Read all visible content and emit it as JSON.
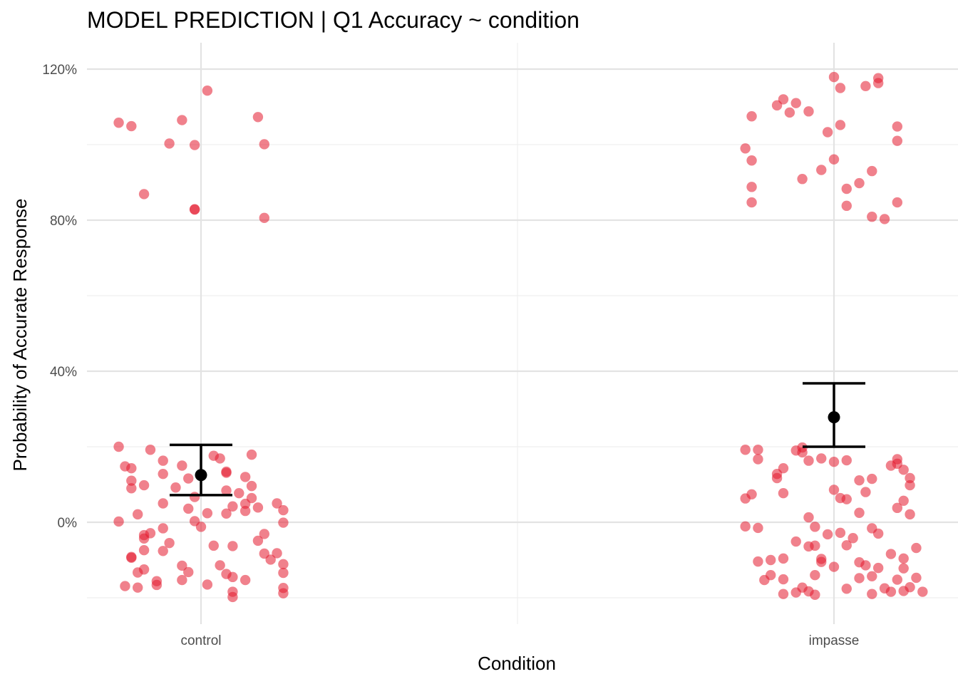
{
  "chart_data": {
    "type": "scatter",
    "title": "MODEL PREDICTION | Q1 Accuracy ~ condition",
    "xlabel": "Condition",
    "ylabel": "Probability of Accurate Response",
    "categories": [
      "control",
      "impasse"
    ],
    "y_ticks": [
      0,
      40,
      80,
      120
    ],
    "y_tick_labels": [
      "0%",
      "40%",
      "80%",
      "120%"
    ],
    "ylim": [
      -26,
      127
    ],
    "grid": true,
    "point_color": "#e31a2d",
    "estimate_color": "#000000",
    "estimates": [
      {
        "category": "control",
        "mean": 12.5,
        "lower": 7.2,
        "upper": 20.5
      },
      {
        "category": "impasse",
        "mean": 27.8,
        "lower": 20.0,
        "upper": 36.8
      }
    ],
    "points": {
      "control": [
        {
          "x": -0.13,
          "y": 105.8
        },
        {
          "x": -0.11,
          "y": 104.9
        },
        {
          "x": 0.01,
          "y": 114.3
        },
        {
          "x": -0.03,
          "y": 106.5
        },
        {
          "x": 0.09,
          "y": 107.3
        },
        {
          "x": -0.05,
          "y": 100.3
        },
        {
          "x": -0.01,
          "y": 99.9
        },
        {
          "x": 0.1,
          "y": 100.1
        },
        {
          "x": -0.09,
          "y": 86.9
        },
        {
          "x": -0.01,
          "y": 82.8
        },
        {
          "x": -0.01,
          "y": 82.9
        },
        {
          "x": 0.1,
          "y": 80.6
        },
        {
          "x": -0.13,
          "y": 20.0
        },
        {
          "x": -0.08,
          "y": 19.2
        },
        {
          "x": 0.02,
          "y": 17.6
        },
        {
          "x": 0.08,
          "y": 17.9
        },
        {
          "x": -0.06,
          "y": 16.3
        },
        {
          "x": 0.03,
          "y": 16.9
        },
        {
          "x": -0.12,
          "y": 14.8
        },
        {
          "x": -0.11,
          "y": 14.3
        },
        {
          "x": -0.03,
          "y": 15.0
        },
        {
          "x": 0.04,
          "y": 13.4
        },
        {
          "x": -0.06,
          "y": 12.8
        },
        {
          "x": 0.04,
          "y": 13.1
        },
        {
          "x": 0.07,
          "y": 12.0
        },
        {
          "x": -0.11,
          "y": 11.0
        },
        {
          "x": -0.02,
          "y": 11.6
        },
        {
          "x": 0.08,
          "y": 9.6
        },
        {
          "x": -0.09,
          "y": 9.8
        },
        {
          "x": -0.11,
          "y": 9.0
        },
        {
          "x": -0.04,
          "y": 9.2
        },
        {
          "x": 0.04,
          "y": 8.4
        },
        {
          "x": 0.06,
          "y": 7.7
        },
        {
          "x": -0.01,
          "y": 6.7
        },
        {
          "x": 0.08,
          "y": 6.4
        },
        {
          "x": 0.12,
          "y": 5.0
        },
        {
          "x": -0.06,
          "y": 5.0
        },
        {
          "x": 0.07,
          "y": 4.9
        },
        {
          "x": 0.05,
          "y": 4.2
        },
        {
          "x": 0.09,
          "y": 3.9
        },
        {
          "x": -0.02,
          "y": 3.6
        },
        {
          "x": 0.13,
          "y": 3.2
        },
        {
          "x": 0.07,
          "y": 3.0
        },
        {
          "x": 0.01,
          "y": 2.4
        },
        {
          "x": 0.04,
          "y": 2.3
        },
        {
          "x": -0.1,
          "y": 2.1
        },
        {
          "x": -0.13,
          "y": 0.2
        },
        {
          "x": -0.01,
          "y": 0.3
        },
        {
          "x": 0.13,
          "y": -0.1
        },
        {
          "x": 0.0,
          "y": -1.2
        },
        {
          "x": -0.06,
          "y": -1.6
        },
        {
          "x": -0.08,
          "y": -2.9
        },
        {
          "x": -0.09,
          "y": -3.4
        },
        {
          "x": 0.1,
          "y": -3.1
        },
        {
          "x": -0.09,
          "y": -4.3
        },
        {
          "x": 0.09,
          "y": -4.9
        },
        {
          "x": -0.05,
          "y": -5.5
        },
        {
          "x": 0.02,
          "y": -6.2
        },
        {
          "x": 0.05,
          "y": -6.3
        },
        {
          "x": -0.09,
          "y": -7.4
        },
        {
          "x": -0.06,
          "y": -7.6
        },
        {
          "x": 0.1,
          "y": -8.3
        },
        {
          "x": 0.12,
          "y": -8.2
        },
        {
          "x": -0.11,
          "y": -9.2
        },
        {
          "x": -0.11,
          "y": -9.4
        },
        {
          "x": 0.11,
          "y": -9.9
        },
        {
          "x": 0.03,
          "y": -11.4
        },
        {
          "x": -0.03,
          "y": -11.5
        },
        {
          "x": 0.13,
          "y": -11.1
        },
        {
          "x": -0.09,
          "y": -12.5
        },
        {
          "x": -0.1,
          "y": -13.3
        },
        {
          "x": -0.02,
          "y": -13.2
        },
        {
          "x": 0.04,
          "y": -13.7
        },
        {
          "x": 0.05,
          "y": -14.5
        },
        {
          "x": 0.13,
          "y": -13.4
        },
        {
          "x": -0.07,
          "y": -15.6
        },
        {
          "x": -0.03,
          "y": -15.3
        },
        {
          "x": 0.07,
          "y": -15.3
        },
        {
          "x": 0.01,
          "y": -16.5
        },
        {
          "x": -0.07,
          "y": -16.6
        },
        {
          "x": -0.12,
          "y": -16.9
        },
        {
          "x": -0.1,
          "y": -17.3
        },
        {
          "x": 0.13,
          "y": -17.4
        },
        {
          "x": 0.05,
          "y": -18.4
        },
        {
          "x": 0.13,
          "y": -18.8
        },
        {
          "x": 0.05,
          "y": -19.8
        }
      ],
      "impasse": [
        {
          "x": 0.0,
          "y": 117.9
        },
        {
          "x": 0.07,
          "y": 117.6
        },
        {
          "x": 0.01,
          "y": 115.0
        },
        {
          "x": 0.05,
          "y": 115.5
        },
        {
          "x": 0.07,
          "y": 116.3
        },
        {
          "x": -0.08,
          "y": 112.0
        },
        {
          "x": -0.06,
          "y": 111.0
        },
        {
          "x": -0.09,
          "y": 110.4
        },
        {
          "x": -0.07,
          "y": 108.5
        },
        {
          "x": -0.04,
          "y": 108.8
        },
        {
          "x": -0.13,
          "y": 107.5
        },
        {
          "x": 0.01,
          "y": 105.2
        },
        {
          "x": 0.1,
          "y": 104.8
        },
        {
          "x": -0.01,
          "y": 103.3
        },
        {
          "x": 0.1,
          "y": 101.0
        },
        {
          "x": -0.14,
          "y": 99.0
        },
        {
          "x": -0.13,
          "y": 95.8
        },
        {
          "x": 0.0,
          "y": 96.1
        },
        {
          "x": -0.02,
          "y": 93.3
        },
        {
          "x": 0.06,
          "y": 93.0
        },
        {
          "x": -0.05,
          "y": 90.9
        },
        {
          "x": 0.04,
          "y": 89.8
        },
        {
          "x": -0.13,
          "y": 88.8
        },
        {
          "x": 0.02,
          "y": 88.3
        },
        {
          "x": -0.13,
          "y": 84.7
        },
        {
          "x": 0.02,
          "y": 83.8
        },
        {
          "x": 0.1,
          "y": 84.7
        },
        {
          "x": 0.06,
          "y": 80.9
        },
        {
          "x": 0.08,
          "y": 80.3
        },
        {
          "x": -0.14,
          "y": 19.2
        },
        {
          "x": -0.12,
          "y": 19.2
        },
        {
          "x": -0.06,
          "y": 19.0
        },
        {
          "x": -0.05,
          "y": 18.5
        },
        {
          "x": -0.05,
          "y": 19.8
        },
        {
          "x": -0.12,
          "y": 16.7
        },
        {
          "x": -0.04,
          "y": 16.3
        },
        {
          "x": -0.02,
          "y": 16.9
        },
        {
          "x": 0.0,
          "y": 16.0
        },
        {
          "x": 0.02,
          "y": 16.4
        },
        {
          "x": 0.1,
          "y": 16.7
        },
        {
          "x": 0.1,
          "y": 15.5
        },
        {
          "x": 0.09,
          "y": 15.0
        },
        {
          "x": 0.11,
          "y": 13.9
        },
        {
          "x": -0.08,
          "y": 14.3
        },
        {
          "x": -0.09,
          "y": 11.7
        },
        {
          "x": 0.04,
          "y": 11.1
        },
        {
          "x": 0.06,
          "y": 11.5
        },
        {
          "x": 0.12,
          "y": 11.7
        },
        {
          "x": -0.09,
          "y": 12.8
        },
        {
          "x": 0.12,
          "y": 9.8
        },
        {
          "x": 0.0,
          "y": 8.6
        },
        {
          "x": 0.05,
          "y": 8.0
        },
        {
          "x": -0.08,
          "y": 7.7
        },
        {
          "x": -0.13,
          "y": 7.4
        },
        {
          "x": -0.14,
          "y": 6.3
        },
        {
          "x": 0.01,
          "y": 6.4
        },
        {
          "x": 0.02,
          "y": 6.1
        },
        {
          "x": 0.11,
          "y": 5.7
        },
        {
          "x": 0.1,
          "y": 3.8
        },
        {
          "x": 0.04,
          "y": 2.5
        },
        {
          "x": 0.12,
          "y": 2.1
        },
        {
          "x": -0.04,
          "y": 1.3
        },
        {
          "x": -0.03,
          "y": -1.2
        },
        {
          "x": -0.14,
          "y": -1.1
        },
        {
          "x": -0.12,
          "y": -1.5
        },
        {
          "x": 0.06,
          "y": -1.6
        },
        {
          "x": 0.01,
          "y": -2.8
        },
        {
          "x": -0.01,
          "y": -3.2
        },
        {
          "x": 0.07,
          "y": -3.0
        },
        {
          "x": 0.03,
          "y": -4.2
        },
        {
          "x": -0.06,
          "y": -5.1
        },
        {
          "x": -0.03,
          "y": -6.2
        },
        {
          "x": -0.04,
          "y": -6.4
        },
        {
          "x": 0.02,
          "y": -6.1
        },
        {
          "x": 0.13,
          "y": -6.8
        },
        {
          "x": 0.09,
          "y": -8.4
        },
        {
          "x": 0.11,
          "y": -9.6
        },
        {
          "x": -0.12,
          "y": -10.4
        },
        {
          "x": -0.1,
          "y": -10.0
        },
        {
          "x": -0.08,
          "y": -9.6
        },
        {
          "x": -0.02,
          "y": -10.5
        },
        {
          "x": -0.02,
          "y": -9.7
        },
        {
          "x": 0.04,
          "y": -10.6
        },
        {
          "x": 0.0,
          "y": -11.8
        },
        {
          "x": 0.05,
          "y": -11.4
        },
        {
          "x": 0.07,
          "y": -12.1
        },
        {
          "x": 0.11,
          "y": -12.2
        },
        {
          "x": -0.1,
          "y": -14.0
        },
        {
          "x": -0.03,
          "y": -14.0
        },
        {
          "x": 0.06,
          "y": -14.3
        },
        {
          "x": -0.08,
          "y": -15.1
        },
        {
          "x": -0.11,
          "y": -15.3
        },
        {
          "x": 0.04,
          "y": -14.8
        },
        {
          "x": 0.1,
          "y": -15.2
        },
        {
          "x": 0.13,
          "y": -14.7
        },
        {
          "x": -0.05,
          "y": -17.3
        },
        {
          "x": 0.02,
          "y": -17.6
        },
        {
          "x": 0.08,
          "y": -17.5
        },
        {
          "x": 0.12,
          "y": -17.2
        },
        {
          "x": -0.06,
          "y": -18.6
        },
        {
          "x": -0.04,
          "y": -18.3
        },
        {
          "x": -0.08,
          "y": -19.0
        },
        {
          "x": -0.03,
          "y": -19.2
        },
        {
          "x": 0.06,
          "y": -19.0
        },
        {
          "x": 0.09,
          "y": -18.4
        },
        {
          "x": 0.11,
          "y": -18.2
        },
        {
          "x": 0.14,
          "y": -18.4
        }
      ]
    }
  }
}
